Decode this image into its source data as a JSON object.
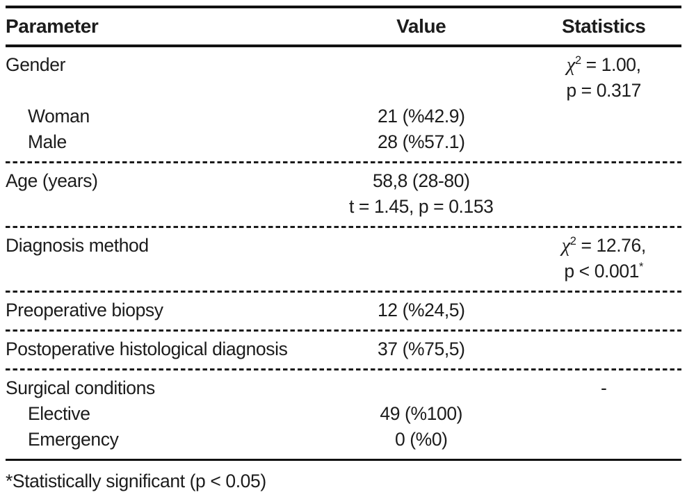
{
  "header": {
    "parameter": "Parameter",
    "value": "Value",
    "statistics": "Statistics"
  },
  "rows": [
    {
      "label": "Gender",
      "indent": false,
      "values": [],
      "stats": [
        [
          {
            "t": "χ",
            "chi": true
          },
          {
            "t": "2",
            "sup": true
          },
          {
            "t": " = 1.00,"
          }
        ],
        [
          {
            "t": "p = 0.317"
          }
        ]
      ],
      "border_after": "none"
    },
    {
      "label": "Woman",
      "indent": true,
      "values": [
        "21 (%42.9)"
      ],
      "stats": [],
      "border_after": "none"
    },
    {
      "label": "Male",
      "indent": true,
      "values": [
        "28 (%57.1)"
      ],
      "stats": [],
      "border_after": "dashed"
    },
    {
      "label": "Age (years)",
      "indent": false,
      "values": [
        "58,8 (28-80)",
        "t = 1.45, p = 0.153"
      ],
      "stats": [],
      "border_after": "dashed"
    },
    {
      "label": "Diagnosis method",
      "indent": false,
      "values": [],
      "stats": [
        [
          {
            "t": "χ",
            "chi": true
          },
          {
            "t": "2",
            "sup": true
          },
          {
            "t": " = 12.76,"
          }
        ],
        [
          {
            "t": "p < 0.001"
          },
          {
            "t": "*",
            "sup": true
          }
        ]
      ],
      "border_after": "dashed"
    },
    {
      "label": "Preoperative biopsy",
      "indent": false,
      "values": [
        "12 (%24,5)"
      ],
      "stats": [],
      "border_after": "dashed"
    },
    {
      "label": "Postoperative histological diagnosis",
      "indent": false,
      "values": [
        "37 (%75,5)"
      ],
      "stats": [],
      "border_after": "dashed"
    },
    {
      "label": "Surgical conditions",
      "indent": false,
      "values": [],
      "stats": [
        [
          {
            "t": "-"
          }
        ]
      ],
      "border_after": "none"
    },
    {
      "label": "Elective",
      "indent": true,
      "values": [
        "49 (%100)"
      ],
      "stats": [],
      "border_after": "none"
    },
    {
      "label": "Emergency",
      "indent": true,
      "values": [
        "0 (%0)"
      ],
      "stats": [],
      "border_after": "solid"
    }
  ],
  "footnote": "*Statistically significant (p < 0.05)",
  "colors": {
    "text": "#1c1c1c",
    "rule": "#111111",
    "background": "#ffffff"
  }
}
